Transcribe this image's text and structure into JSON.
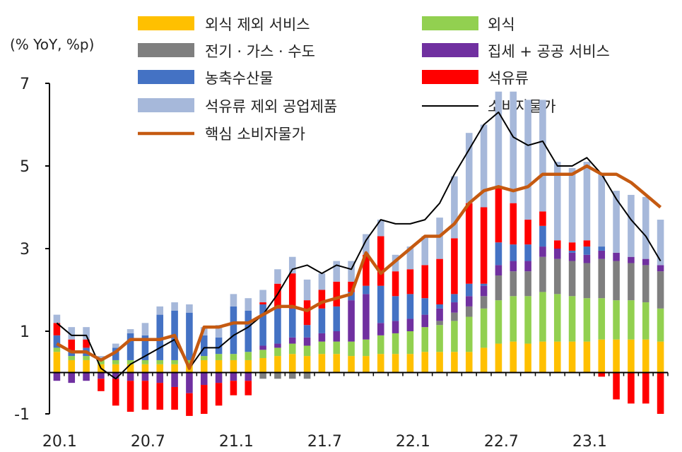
{
  "chart_data": {
    "type": "bar",
    "unit_label": "(% YoY, %p)",
    "ylim": [
      -1,
      7
    ],
    "yticks": [
      -1,
      1,
      3,
      5,
      7
    ],
    "xtick_labels": [
      "20.1",
      "20.7",
      "21.1",
      "21.7",
      "22.1",
      "22.7",
      "23.1"
    ],
    "xtick_index": [
      0,
      6,
      12,
      18,
      24,
      30,
      36
    ],
    "months": [
      "20.1",
      "20.2",
      "20.3",
      "20.4",
      "20.5",
      "20.6",
      "20.7",
      "20.8",
      "20.9",
      "20.10",
      "20.11",
      "20.12",
      "21.1",
      "21.2",
      "21.3",
      "21.4",
      "21.5",
      "21.6",
      "21.7",
      "21.8",
      "21.9",
      "21.10",
      "21.11",
      "21.12",
      "22.1",
      "22.2",
      "22.3",
      "22.4",
      "22.5",
      "22.6",
      "22.7",
      "22.8",
      "22.9",
      "22.10",
      "22.11",
      "22.12",
      "23.1",
      "23.2",
      "23.3",
      "23.4",
      "23.5",
      "23.6"
    ],
    "series": [
      {
        "name": "외식 제외 서비스",
        "color": "#FFC000",
        "kind": "bar",
        "values": [
          0.5,
          0.3,
          0.3,
          0.2,
          0.2,
          0.2,
          0.2,
          0.2,
          0.2,
          0.2,
          0.3,
          0.3,
          0.3,
          0.3,
          0.35,
          0.4,
          0.45,
          0.4,
          0.45,
          0.45,
          0.4,
          0.4,
          0.45,
          0.45,
          0.45,
          0.5,
          0.5,
          0.5,
          0.5,
          0.6,
          0.7,
          0.75,
          0.7,
          0.75,
          0.75,
          0.75,
          0.75,
          0.8,
          0.8,
          0.8,
          0.8,
          0.75
        ]
      },
      {
        "name": "외식",
        "color": "#92D050",
        "kind": "bar",
        "values": [
          0.1,
          0.1,
          0.1,
          0.1,
          0.1,
          0.1,
          0.1,
          0.1,
          0.1,
          0.1,
          0.1,
          0.15,
          0.15,
          0.2,
          0.2,
          0.2,
          0.25,
          0.25,
          0.3,
          0.3,
          0.35,
          0.4,
          0.45,
          0.5,
          0.55,
          0.6,
          0.65,
          0.75,
          0.85,
          0.95,
          1.05,
          1.1,
          1.15,
          1.2,
          1.15,
          1.1,
          1.05,
          1.0,
          0.95,
          0.95,
          0.9,
          0.8
        ]
      },
      {
        "name": "전기 · 가스 · 수도",
        "color": "#7F7F7F",
        "kind": "bar",
        "values": [
          0,
          0,
          0,
          0,
          0,
          0,
          0,
          0,
          0,
          0,
          0,
          0,
          0,
          0,
          -0.15,
          -0.15,
          -0.15,
          -0.15,
          0,
          0,
          0,
          0,
          0,
          0,
          0,
          0,
          0.1,
          0.2,
          0.25,
          0.3,
          0.6,
          0.6,
          0.6,
          0.85,
          0.85,
          0.85,
          0.85,
          0.95,
          0.95,
          0.9,
          0.9,
          0.9
        ]
      },
      {
        "name": "집세 + 공공 서비스",
        "color": "#7030A0",
        "kind": "bar",
        "values": [
          -0.2,
          -0.25,
          -0.2,
          -0.15,
          -0.15,
          -0.2,
          -0.2,
          -0.25,
          -0.35,
          -0.5,
          -0.3,
          -0.25,
          -0.2,
          -0.2,
          0.1,
          0.1,
          0.15,
          0.2,
          0.2,
          0.25,
          1.0,
          1.1,
          0.3,
          0.3,
          0.3,
          0.3,
          0.3,
          0.25,
          0.25,
          0.25,
          0.25,
          0.25,
          0.25,
          0.25,
          0.25,
          0.2,
          0.2,
          0.2,
          0.2,
          0.15,
          0.15,
          0.15
        ]
      },
      {
        "name": "농축수산물",
        "color": "#4472C4",
        "kind": "bar",
        "values": [
          0.3,
          0.1,
          0.2,
          0,
          0.3,
          0.65,
          0.6,
          1.1,
          1.2,
          1.15,
          0.5,
          0.4,
          1.15,
          1.0,
          1.0,
          0.85,
          0.7,
          0.3,
          0.6,
          0.6,
          0.2,
          0.2,
          0.9,
          0.6,
          0.6,
          0.4,
          0.1,
          0.2,
          0.3,
          0.05,
          0.55,
          0.4,
          0.4,
          0.5,
          0,
          0.05,
          0.2,
          0.1,
          0,
          0,
          0,
          0
        ]
      },
      {
        "name": "석유류",
        "color": "#FF0000",
        "kind": "bar",
        "values": [
          0.3,
          0.3,
          0.2,
          -0.3,
          -0.65,
          -0.75,
          -0.7,
          -0.65,
          -0.55,
          -0.55,
          -0.7,
          -0.55,
          -0.35,
          -0.35,
          0.05,
          0.6,
          0.85,
          0.6,
          0.45,
          0.6,
          0.25,
          0.75,
          1.2,
          0.6,
          0.6,
          0.8,
          1.1,
          1.35,
          1.95,
          1.85,
          1.35,
          1.0,
          0.6,
          0.35,
          0.2,
          0.2,
          0.15,
          -0.1,
          -0.65,
          -0.75,
          -0.75,
          -1.0
        ]
      },
      {
        "name": "석유류 제외 공업제품",
        "color": "#A6B8DA",
        "kind": "bar",
        "values": [
          0.2,
          0.3,
          0.3,
          0.1,
          0.1,
          0.1,
          0.3,
          0.2,
          0.2,
          0.2,
          0.2,
          0.3,
          0.3,
          0.3,
          0.3,
          0.35,
          0.4,
          0.5,
          0.4,
          0.5,
          0.5,
          0.5,
          0.4,
          0.4,
          0.55,
          0.7,
          1.0,
          1.5,
          1.7,
          2.0,
          2.3,
          2.7,
          2.9,
          2.7,
          1.9,
          1.8,
          1.9,
          1.75,
          1.5,
          1.5,
          1.5,
          1.1
        ]
      },
      {
        "name": "소비자물가",
        "color": "#000000",
        "kind": "line",
        "values": [
          1.2,
          0.9,
          0.9,
          0.1,
          -0.15,
          0.2,
          0.4,
          0.6,
          0.8,
          0.1,
          0.6,
          0.6,
          0.9,
          1.1,
          1.4,
          1.9,
          2.5,
          2.6,
          2.4,
          2.6,
          2.5,
          3.2,
          3.7,
          3.6,
          3.6,
          3.7,
          4.1,
          4.8,
          5.4,
          6.0,
          6.3,
          5.7,
          5.5,
          5.6,
          5.0,
          5.0,
          5.2,
          4.8,
          4.2,
          3.7,
          3.3,
          2.7
        ]
      },
      {
        "name": "핵심 소비자물가",
        "color": "#C55A11",
        "kind": "line",
        "values": [
          0.7,
          0.5,
          0.5,
          0.3,
          0.5,
          0.8,
          0.8,
          0.8,
          0.9,
          0.1,
          1.1,
          1.1,
          1.2,
          1.2,
          1.4,
          1.6,
          1.6,
          1.5,
          1.7,
          1.8,
          1.9,
          2.9,
          2.4,
          2.7,
          3.0,
          3.3,
          3.3,
          3.6,
          4.1,
          4.4,
          4.5,
          4.4,
          4.5,
          4.8,
          4.8,
          4.8,
          5.0,
          4.8,
          4.8,
          4.6,
          4.3,
          4.0
        ]
      }
    ]
  }
}
